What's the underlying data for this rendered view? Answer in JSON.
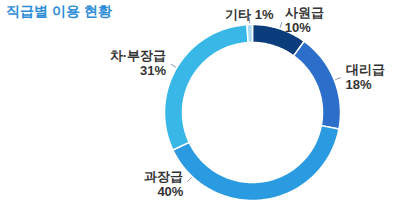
{
  "chart_data": {
    "type": "donut",
    "title": "직급별 이용 현황",
    "categories": [
      "사원급",
      "대리급",
      "과장급",
      "차·부장급",
      "기타"
    ],
    "values": [
      10,
      18,
      40,
      31,
      1
    ],
    "value_labels": [
      "10%",
      "18%",
      "40%",
      "31%",
      "1%"
    ],
    "colors": [
      "#0b3c7c",
      "#2b6fca",
      "#2a9be0",
      "#39b8e8",
      "#a9dcf2"
    ],
    "data_labels": true
  }
}
